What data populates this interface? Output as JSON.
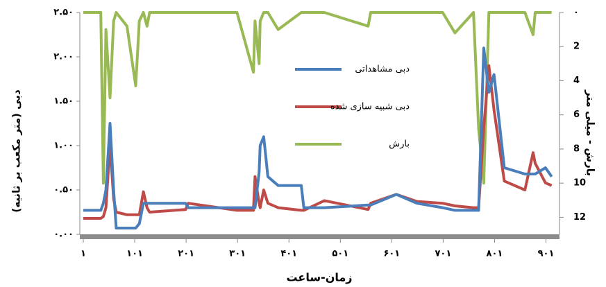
{
  "chart_data": {
    "type": "line",
    "x_label": "زمان-ساعت",
    "y_label": "دبی (متر مکعب بر ثانیه)",
    "y2_label": "بارش - میلی متر",
    "x": [
      1,
      35,
      40,
      45,
      53,
      60,
      65,
      86,
      103,
      110,
      118,
      125,
      130,
      200,
      205,
      300,
      332,
      335,
      343,
      345,
      352,
      360,
      380,
      425,
      430,
      470,
      555,
      560,
      610,
      650,
      700,
      724,
      760,
      770,
      780,
      790,
      800,
      820,
      860,
      876,
      880,
      900,
      912
    ],
    "xlim": [
      1,
      930
    ],
    "xticks": [
      {
        "value": 1,
        "label": "۱"
      },
      {
        "value": 101,
        "label": "۱۰۱"
      },
      {
        "value": 201,
        "label": "۲۰۱"
      },
      {
        "value": 301,
        "label": "۳۰۱"
      },
      {
        "value": 401,
        "label": "۴۰۱"
      },
      {
        "value": 501,
        "label": "۵۰۱"
      },
      {
        "value": 601,
        "label": "۶۰۱"
      },
      {
        "value": 701,
        "label": "۷۰۱"
      },
      {
        "value": 801,
        "label": "۸۰۱"
      },
      {
        "value": 901,
        "label": "۹۰۱"
      }
    ],
    "ylim": [
      0,
      2.5
    ],
    "yticks": [
      {
        "value": 0,
        "label": "۰.۰۰"
      },
      {
        "value": 0.5,
        "label": "۰.۵۰"
      },
      {
        "value": 1,
        "label": "۱.۰۰"
      },
      {
        "value": 1.5,
        "label": "۱.۵۰"
      },
      {
        "value": 2,
        "label": "۲.۰۰"
      },
      {
        "value": 2.5,
        "label": "۲.۵۰"
      }
    ],
    "y2lim": [
      13,
      0
    ],
    "y2ticks": [
      {
        "value": 0,
        "label": "۰"
      },
      2,
      4,
      6,
      8,
      10,
      12
    ],
    "series": [
      {
        "name": "دبی مشاهداتی",
        "color": "#4a7ebb",
        "values": [
          0.27,
          0.27,
          0.35,
          0.5,
          1.25,
          0.5,
          0.07,
          0.07,
          0.07,
          0.12,
          0.35,
          0.35,
          0.35,
          0.35,
          0.3,
          0.3,
          0.3,
          0.3,
          0.7,
          1.0,
          1.1,
          0.65,
          0.55,
          0.55,
          0.3,
          0.3,
          0.33,
          0.33,
          0.45,
          0.35,
          0.3,
          0.27,
          0.27,
          0.27,
          2.1,
          1.6,
          1.8,
          0.75,
          0.68,
          0.68,
          0.68,
          0.75,
          0.65
        ]
      },
      {
        "name": "دبی شبیه سازی شده",
        "color": "#be4b48",
        "values": [
          0.18,
          0.18,
          0.2,
          0.3,
          1.02,
          0.4,
          0.25,
          0.22,
          0.22,
          0.22,
          0.48,
          0.3,
          0.25,
          0.28,
          0.35,
          0.27,
          0.27,
          0.65,
          0.35,
          0.3,
          0.5,
          0.35,
          0.3,
          0.27,
          0.27,
          0.38,
          0.28,
          0.35,
          0.45,
          0.37,
          0.35,
          0.32,
          0.3,
          0.3,
          1.2,
          1.9,
          1.4,
          0.6,
          0.5,
          0.92,
          0.8,
          0.58,
          0.55
        ]
      },
      {
        "name": "بارش",
        "color": "#98b954",
        "axis": "y2",
        "values": [
          0,
          0,
          10,
          1,
          5,
          0.5,
          0,
          0.8,
          4.3,
          0.5,
          0,
          0.8,
          0,
          0,
          0,
          0,
          3.5,
          0.5,
          3,
          0.5,
          0,
          0,
          1,
          0,
          0,
          0,
          0.8,
          0,
          0,
          0,
          0,
          1.2,
          0,
          6.8,
          10,
          0,
          0,
          0,
          0,
          1.3,
          0,
          0,
          0
        ]
      }
    ]
  }
}
